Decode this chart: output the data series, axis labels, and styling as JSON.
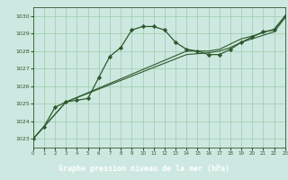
{
  "title": "Graphe pression niveau de la mer (hPa)",
  "bg_color": "#cde8e0",
  "plot_bg_color": "#cde8e0",
  "label_bg_color": "#336633",
  "label_text_color": "#ffffff",
  "grid_color": "#99ccaa",
  "line_color": "#2d5a2d",
  "marker_color": "#2d5a2d",
  "xlim": [
    0,
    23
  ],
  "ylim": [
    1022.5,
    1030.5
  ],
  "yticks": [
    1023,
    1024,
    1025,
    1026,
    1027,
    1028,
    1029,
    1030
  ],
  "xticks": [
    0,
    1,
    2,
    3,
    4,
    5,
    6,
    7,
    8,
    9,
    10,
    11,
    12,
    13,
    14,
    15,
    16,
    17,
    18,
    19,
    20,
    21,
    22,
    23
  ],
  "series1_x": [
    0,
    1,
    2,
    3,
    4,
    5,
    6,
    7,
    8,
    9,
    10,
    11,
    12,
    13,
    14,
    15,
    16,
    17,
    18,
    19,
    20,
    21,
    22,
    23
  ],
  "series1_y": [
    1023.0,
    1023.7,
    1024.8,
    1025.1,
    1025.2,
    1025.3,
    1026.5,
    1027.7,
    1028.2,
    1029.2,
    1029.4,
    1029.4,
    1029.2,
    1028.5,
    1028.1,
    1028.0,
    1027.8,
    1027.8,
    1028.1,
    1028.5,
    1028.8,
    1029.1,
    1029.2,
    1030.0
  ],
  "series2_x": [
    0,
    3,
    14,
    15,
    16,
    17,
    18,
    19,
    20,
    21,
    22,
    23
  ],
  "series2_y": [
    1023.0,
    1025.1,
    1028.0,
    1028.0,
    1028.0,
    1028.1,
    1028.4,
    1028.7,
    1028.85,
    1029.05,
    1029.25,
    1030.0
  ],
  "series3_x": [
    0,
    3,
    14,
    15,
    16,
    17,
    18,
    19,
    20,
    21,
    22,
    23
  ],
  "series3_y": [
    1023.0,
    1025.1,
    1027.8,
    1027.85,
    1027.9,
    1028.0,
    1028.2,
    1028.5,
    1028.7,
    1028.9,
    1029.1,
    1029.9
  ]
}
